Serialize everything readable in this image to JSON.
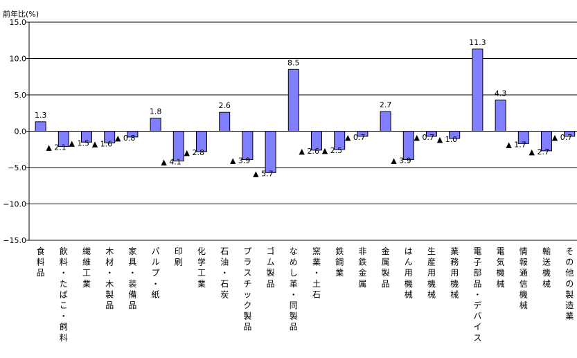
{
  "chart_data": {
    "type": "bar",
    "ylabel": "前年比(%)",
    "ylim": [
      -15,
      15
    ],
    "yticks": [
      "15.0",
      "10.0",
      "5.0",
      "0.0",
      "-5.0",
      "-10.0",
      "-15.0"
    ],
    "grid": true,
    "bar_color": "#7f7fff",
    "categories": [
      "食料品",
      "飲料・たばこ・飼料",
      "繊維工業",
      "木材・木製品",
      "家具・装備品",
      "パルプ・紙",
      "印刷",
      "化学工業",
      "石油・石炭",
      "プラスチック製品",
      "ゴム製品",
      "なめし革・同製品",
      "窯業・土石",
      "鉄鋼業",
      "非鉄金属",
      "金属製品",
      "はん用機械",
      "生産用機械",
      "業務用機械",
      "電子部品・デバイス",
      "電気機械",
      "情報通信機械",
      "輸送機械",
      "その他の製造業"
    ],
    "values": [
      1.3,
      -2.1,
      -1.5,
      -1.6,
      -0.8,
      1.8,
      -4.1,
      -2.8,
      2.6,
      -3.9,
      -5.7,
      8.5,
      -2.6,
      -2.5,
      -0.7,
      2.7,
      -3.9,
      -0.7,
      -1.0,
      11.3,
      4.3,
      -1.7,
      -2.7,
      -0.7
    ],
    "data_labels": [
      "1.3",
      "▲ 2.1",
      "▲ 1.5",
      "▲ 1.6",
      "▲ 0.8",
      "1.8",
      "▲ 4.1",
      "▲ 2.8",
      "2.6",
      "▲ 3.9",
      "▲ 5.7",
      "8.5",
      "▲ 2.6",
      "▲ 2.5",
      "▲ 0.7",
      "2.7",
      "▲ 3.9",
      "▲ 0.7",
      "▲ 1.0",
      "11.3",
      "4.3",
      "▲ 1.7",
      "▲ 2.7",
      "▲ 0.7"
    ]
  }
}
